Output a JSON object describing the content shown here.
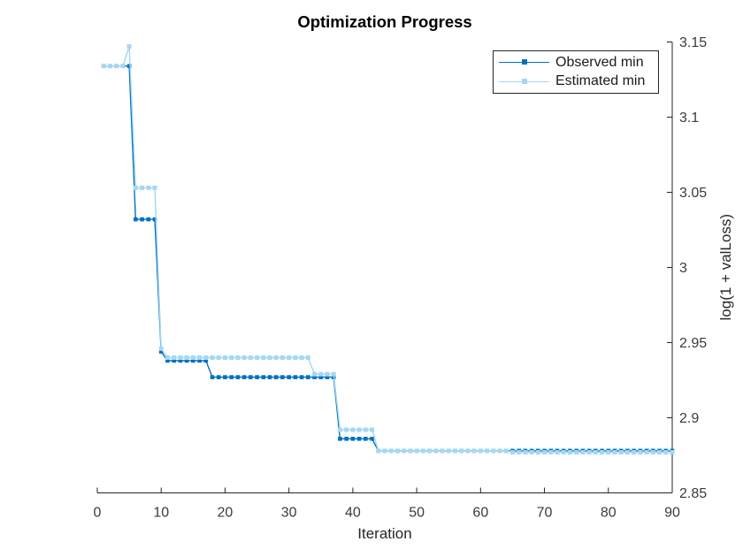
{
  "chart_data": {
    "type": "line",
    "title": "Optimization Progress",
    "xlabel": "Iteration",
    "ylabel": "log(1 + valLoss)",
    "xlim": [
      0,
      90
    ],
    "ylim": [
      2.85,
      3.15
    ],
    "grid": false,
    "y_axis_location": "right",
    "legend_position": "northeast",
    "x_ticks": [
      {
        "v": 0,
        "label": "0"
      },
      {
        "v": 10,
        "label": "10"
      },
      {
        "v": 20,
        "label": "20"
      },
      {
        "v": 30,
        "label": "30"
      },
      {
        "v": 40,
        "label": "40"
      },
      {
        "v": 50,
        "label": "50"
      },
      {
        "v": 60,
        "label": "60"
      },
      {
        "v": 70,
        "label": "70"
      },
      {
        "v": 80,
        "label": "80"
      },
      {
        "v": 90,
        "label": "90"
      }
    ],
    "y_ticks": [
      {
        "v": 2.85,
        "label": "2.85"
      },
      {
        "v": 2.9,
        "label": "2.9"
      },
      {
        "v": 2.95,
        "label": "2.95"
      },
      {
        "v": 3.0,
        "label": "3"
      },
      {
        "v": 3.05,
        "label": "3.05"
      },
      {
        "v": 3.1,
        "label": "3.1"
      },
      {
        "v": 3.15,
        "label": "3.15"
      }
    ],
    "series": [
      {
        "name": "Observed min",
        "color": "#0072BD",
        "marker": "square",
        "marker_size": 4.6,
        "runs_comment": "each run = [iteration_start, iteration_end, value]",
        "runs": [
          [
            1,
            5,
            3.134
          ],
          [
            6,
            9,
            3.032
          ],
          [
            10,
            10,
            2.944
          ],
          [
            11,
            17,
            2.938
          ],
          [
            18,
            37,
            2.927
          ],
          [
            38,
            43,
            2.886
          ],
          [
            44,
            90,
            2.878
          ]
        ]
      },
      {
        "name": "Estimated min",
        "color": "#A6D7F3",
        "marker": "square",
        "marker_size": 5.0,
        "runs": [
          [
            1,
            4,
            3.134
          ],
          [
            5,
            5,
            3.147
          ],
          [
            6,
            9,
            3.053
          ],
          [
            10,
            10,
            2.946
          ],
          [
            11,
            33,
            2.94
          ],
          [
            34,
            37,
            2.929
          ],
          [
            38,
            43,
            2.892
          ],
          [
            44,
            64,
            2.878
          ],
          [
            65,
            90,
            2.877
          ]
        ]
      }
    ],
    "axis_color": "#262626",
    "tick_label_color": "#3b3b3b",
    "background_color": "#ffffff"
  }
}
